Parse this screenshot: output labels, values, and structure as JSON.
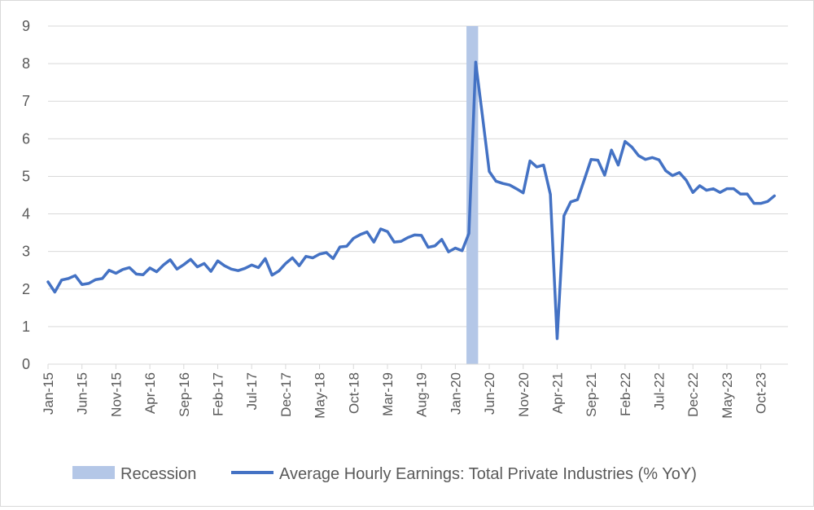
{
  "chart_data": {
    "type": "line",
    "ylim": [
      0,
      9
    ],
    "yticks": [
      "0",
      "1",
      "2",
      "3",
      "4",
      "5",
      "6",
      "7",
      "8",
      "9"
    ],
    "grid": true,
    "legend_position": "bottom",
    "x_tick_labels": [
      "Jan-15",
      "Jun-15",
      "Nov-15",
      "Apr-16",
      "Sep-16",
      "Feb-17",
      "Jul-17",
      "Dec-17",
      "May-18",
      "Oct-18",
      "Mar-19",
      "Aug-19",
      "Jan-20",
      "Jun-20",
      "Nov-20",
      "Apr-21",
      "Sep-21",
      "Feb-22",
      "Jul-22",
      "Dec-22",
      "May-23",
      "Oct-23"
    ],
    "x_start": "Jan-15",
    "x_end": "Feb-24",
    "recession": {
      "name": "Recession",
      "start": "Mar-20",
      "end": "Apr-20",
      "color": "#b4c7e7"
    },
    "series": [
      {
        "name": "Average Hourly Earnings: Total Private Industries (% YoY)",
        "color": "#4472c4",
        "values": [
          2.19,
          1.92,
          2.24,
          2.28,
          2.36,
          2.12,
          2.15,
          2.25,
          2.28,
          2.5,
          2.42,
          2.52,
          2.57,
          2.4,
          2.38,
          2.56,
          2.46,
          2.64,
          2.78,
          2.53,
          2.65,
          2.79,
          2.59,
          2.68,
          2.47,
          2.75,
          2.62,
          2.53,
          2.49,
          2.55,
          2.64,
          2.57,
          2.81,
          2.37,
          2.48,
          2.68,
          2.83,
          2.62,
          2.87,
          2.83,
          2.93,
          2.97,
          2.81,
          3.12,
          3.14,
          3.35,
          3.45,
          3.52,
          3.25,
          3.6,
          3.53,
          3.25,
          3.27,
          3.37,
          3.44,
          3.43,
          3.11,
          3.15,
          3.32,
          2.99,
          3.09,
          3.02,
          3.48,
          8.04,
          6.6,
          5.13,
          4.87,
          4.81,
          4.77,
          4.67,
          4.56,
          5.41,
          5.25,
          5.3,
          4.52,
          0.68,
          3.95,
          4.32,
          4.38,
          4.91,
          5.45,
          5.43,
          5.03,
          5.7,
          5.3,
          5.93,
          5.78,
          5.55,
          5.45,
          5.5,
          5.44,
          5.15,
          5.02,
          5.1,
          4.9,
          4.57,
          4.75,
          4.63,
          4.67,
          4.57,
          4.67,
          4.67,
          4.53,
          4.53,
          4.28,
          4.28,
          4.33,
          4.48
        ]
      }
    ]
  }
}
